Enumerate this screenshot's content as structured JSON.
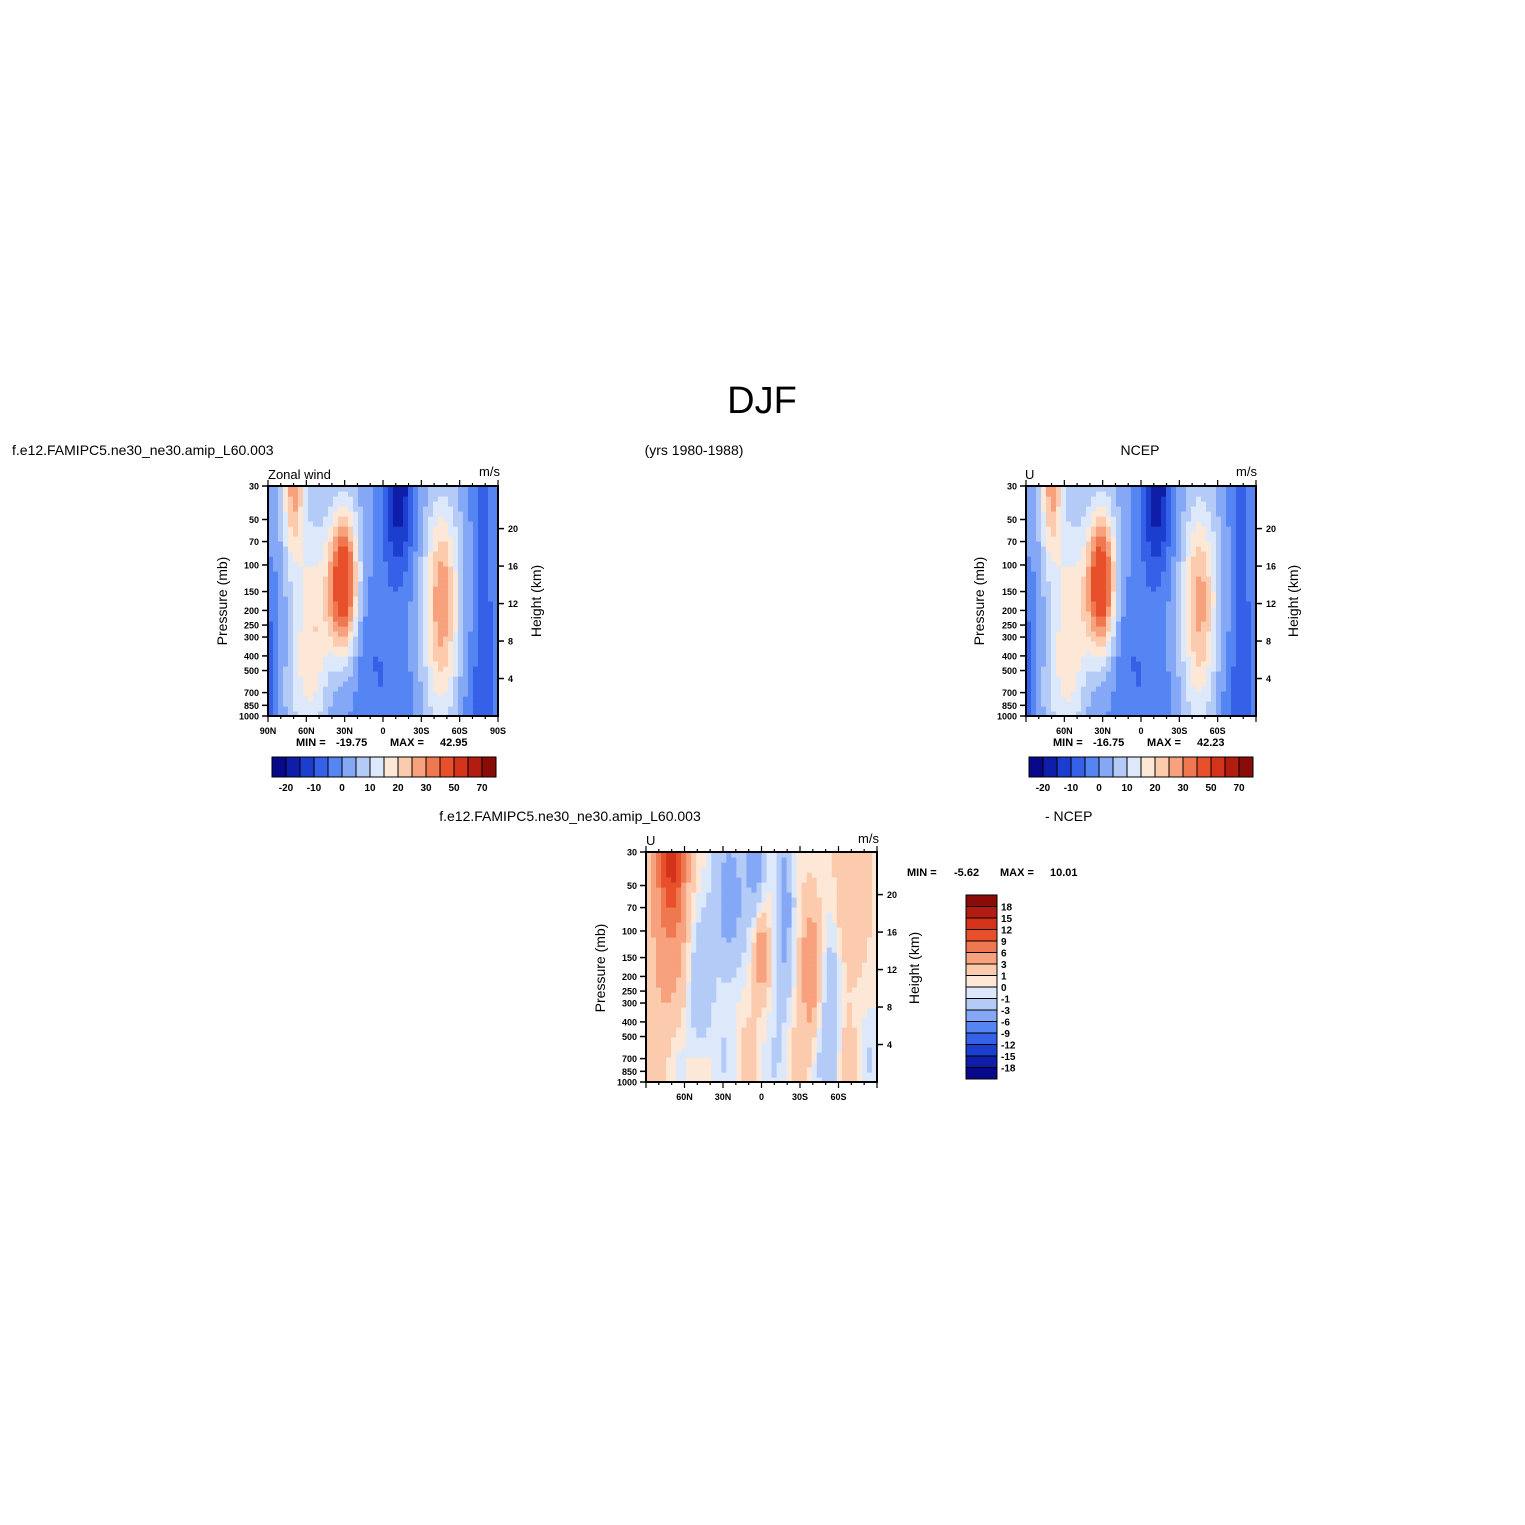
{
  "page_title": "DJF",
  "header": {
    "case_name": "f.e12.FAMIPC5.ne30_ne30.amip_L60.003",
    "years": "(yrs 1980-1988)",
    "obs_name": "NCEP"
  },
  "diff_header": {
    "case_name": "f.e12.FAMIPC5.ne30_ne30.amip_L60.003",
    "obs_label": "- NCEP"
  },
  "chart_data": [
    {
      "type": "heatmap",
      "panel": "model",
      "title_left": "Zonal wind",
      "units": "m/s",
      "ylabel": "Pressure (mb)",
      "ylabel_right": "Height (km)",
      "x_ticks": [
        "90N",
        "60N",
        "30N",
        "0",
        "30S",
        "60S",
        "90S"
      ],
      "x_tick_lat": [
        90,
        60,
        30,
        0,
        -30,
        -60,
        -90
      ],
      "xlim": [
        90,
        -90
      ],
      "y_ticks": [
        30,
        50,
        70,
        100,
        150,
        200,
        250,
        300,
        400,
        500,
        700,
        850,
        1000
      ],
      "ylim": [
        1000,
        30
      ],
      "y_scale": "log",
      "height_ticks": [
        4,
        8,
        12,
        16,
        20
      ],
      "stats": {
        "min_label": "MIN =",
        "min": "-19.75",
        "max_label": "MAX =",
        "max": "42.95"
      },
      "levels": [
        -25,
        -20,
        -15,
        -10,
        -5,
        0,
        5,
        10,
        15,
        20,
        25,
        30,
        40,
        50,
        60,
        70
      ],
      "colorbar_labels": [
        "-20",
        "-10",
        "0",
        "10",
        "20",
        "30",
        "50",
        "70"
      ]
    },
    {
      "type": "heatmap",
      "panel": "obs",
      "title_left": "U",
      "units": "m/s",
      "ylabel": "Pressure (mb)",
      "ylabel_right": "Height (km)",
      "x_ticks": [
        "60N",
        "30N",
        "0",
        "30S",
        "60S"
      ],
      "x_tick_lat": [
        60,
        30,
        0,
        -30,
        -60
      ],
      "xlim": [
        90,
        -90
      ],
      "y_ticks": [
        30,
        50,
        70,
        100,
        150,
        200,
        250,
        300,
        400,
        500,
        700,
        850,
        1000
      ],
      "ylim": [
        1000,
        30
      ],
      "y_scale": "log",
      "height_ticks": [
        4,
        8,
        12,
        16,
        20
      ],
      "stats": {
        "min_label": "MIN =",
        "min": "-16.75",
        "max_label": "MAX =",
        "max": "42.23"
      },
      "levels": [
        -25,
        -20,
        -15,
        -10,
        -5,
        0,
        5,
        10,
        15,
        20,
        25,
        30,
        40,
        50,
        60,
        70
      ],
      "colorbar_labels": [
        "-20",
        "-10",
        "0",
        "10",
        "20",
        "30",
        "50",
        "70"
      ]
    },
    {
      "type": "heatmap",
      "panel": "difference",
      "title_left": "U",
      "units": "m/s",
      "ylabel": "Pressure (mb)",
      "ylabel_right": "Height (km)",
      "x_ticks": [
        "60N",
        "30N",
        "0",
        "30S",
        "60S"
      ],
      "x_tick_lat": [
        60,
        30,
        0,
        -30,
        -60
      ],
      "xlim": [
        90,
        -90
      ],
      "y_ticks": [
        30,
        50,
        70,
        100,
        150,
        200,
        250,
        300,
        400,
        500,
        700,
        850,
        1000
      ],
      "ylim": [
        1000,
        30
      ],
      "y_scale": "log",
      "height_ticks": [
        4,
        8,
        12,
        16,
        20
      ],
      "stats": {
        "min_label": "MIN =",
        "min": "-5.62",
        "max_label": "MAX =",
        "max": "10.01"
      },
      "levels": [
        -18,
        -15,
        -12,
        -9,
        -6,
        -3,
        -1,
        0,
        1,
        3,
        6,
        9,
        12,
        15,
        18
      ],
      "colorbar_labels": [
        "18",
        "15",
        "12",
        "9",
        "6",
        "3",
        "1",
        "0",
        "-1",
        "-3",
        "-6",
        "-9",
        "-12",
        "-15",
        "-18"
      ]
    }
  ],
  "colors": {
    "palette": [
      "#08088a",
      "#0f1ea8",
      "#1c3ecf",
      "#3560e8",
      "#5585f2",
      "#85a8f6",
      "#b4cbf8",
      "#dde9fb",
      "#fde8d8",
      "#fccaad",
      "#f7a17d",
      "#f07850",
      "#e8502b",
      "#d4331a",
      "#b31c10",
      "#8a0c08"
    ]
  }
}
